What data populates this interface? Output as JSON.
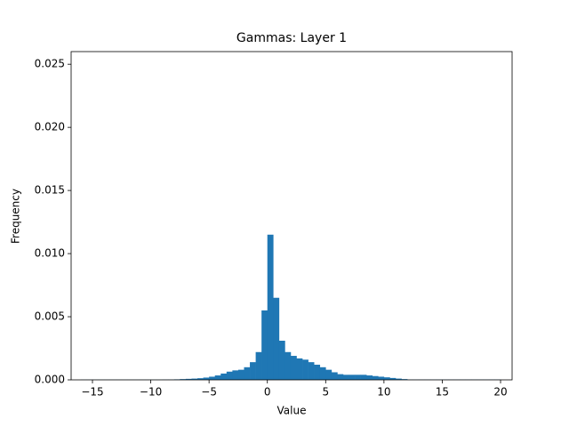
{
  "chart_data": {
    "type": "histogram",
    "title": "Gammas: Layer 1",
    "x_label": "Value",
    "y_label": "Frequency",
    "color": "#1f77b4",
    "grid": false,
    "bins": [
      -16,
      -15.5,
      -15,
      -14.5,
      -14,
      -13.5,
      -13,
      -12.5,
      -12,
      -11.5,
      -11,
      -10.5,
      -10,
      -9.5,
      -9,
      -8.5,
      -8,
      -7.5,
      -7,
      -6.5,
      -6,
      -5.5,
      -5,
      -4.5,
      -4,
      -3.5,
      -3,
      -2.5,
      -2,
      -1.5,
      -1,
      -0.5,
      0,
      0.5,
      1,
      1.5,
      2,
      2.5,
      3,
      3.5,
      4,
      4.5,
      5,
      5.5,
      6,
      6.5,
      7,
      7.5,
      8,
      8.5,
      9,
      9.5,
      10,
      10.5,
      11,
      11.5,
      12,
      12.5,
      13,
      13.5,
      14,
      14.5,
      15,
      15.5,
      16,
      16.5,
      17,
      17.5,
      18,
      18.5,
      19,
      19.5,
      20
    ],
    "values": [
      1e-05,
      1e-05,
      1e-05,
      1e-05,
      1e-05,
      1e-05,
      1e-05,
      1e-05,
      1e-05,
      1e-05,
      1e-05,
      1e-05,
      1e-05,
      1e-05,
      2e-05,
      2e-05,
      4e-05,
      6e-05,
      8e-05,
      0.0001,
      0.00013,
      0.00018,
      0.00025,
      0.00035,
      0.0005,
      0.00065,
      0.00075,
      0.0008,
      0.001,
      0.0014,
      0.0022,
      0.0055,
      0.0115,
      0.0065,
      0.0031,
      0.0022,
      0.0019,
      0.0017,
      0.0016,
      0.0014,
      0.0012,
      0.001,
      0.0008,
      0.0006,
      0.00045,
      0.0004,
      0.0004,
      0.0004,
      0.0004,
      0.00035,
      0.0003,
      0.00025,
      0.0002,
      0.00015,
      0.0001,
      6e-05,
      2e-05,
      2e-05,
      2e-05,
      2e-05,
      2e-05,
      2e-05,
      2e-05,
      2e-05,
      2e-05,
      2e-05,
      2e-05,
      2e-05,
      2e-05,
      2e-05,
      2e-05,
      2e-05
    ],
    "xlim": [
      -16.83,
      20.99
    ],
    "ylim": [
      0,
      0.026
    ],
    "xticks": [
      {
        "value": -15,
        "label": "−15"
      },
      {
        "value": -10,
        "label": "−10"
      },
      {
        "value": -5,
        "label": "−5"
      },
      0,
      5,
      10,
      15,
      20
    ],
    "yticks": [
      {
        "value": 0,
        "label": "0.000"
      },
      {
        "value": 0.005,
        "label": "0.005"
      },
      {
        "value": 0.01,
        "label": "0.010"
      },
      {
        "value": 0.015,
        "label": "0.015"
      },
      {
        "value": 0.02,
        "label": "0.020"
      },
      {
        "value": 0.025,
        "label": "0.025"
      }
    ]
  }
}
